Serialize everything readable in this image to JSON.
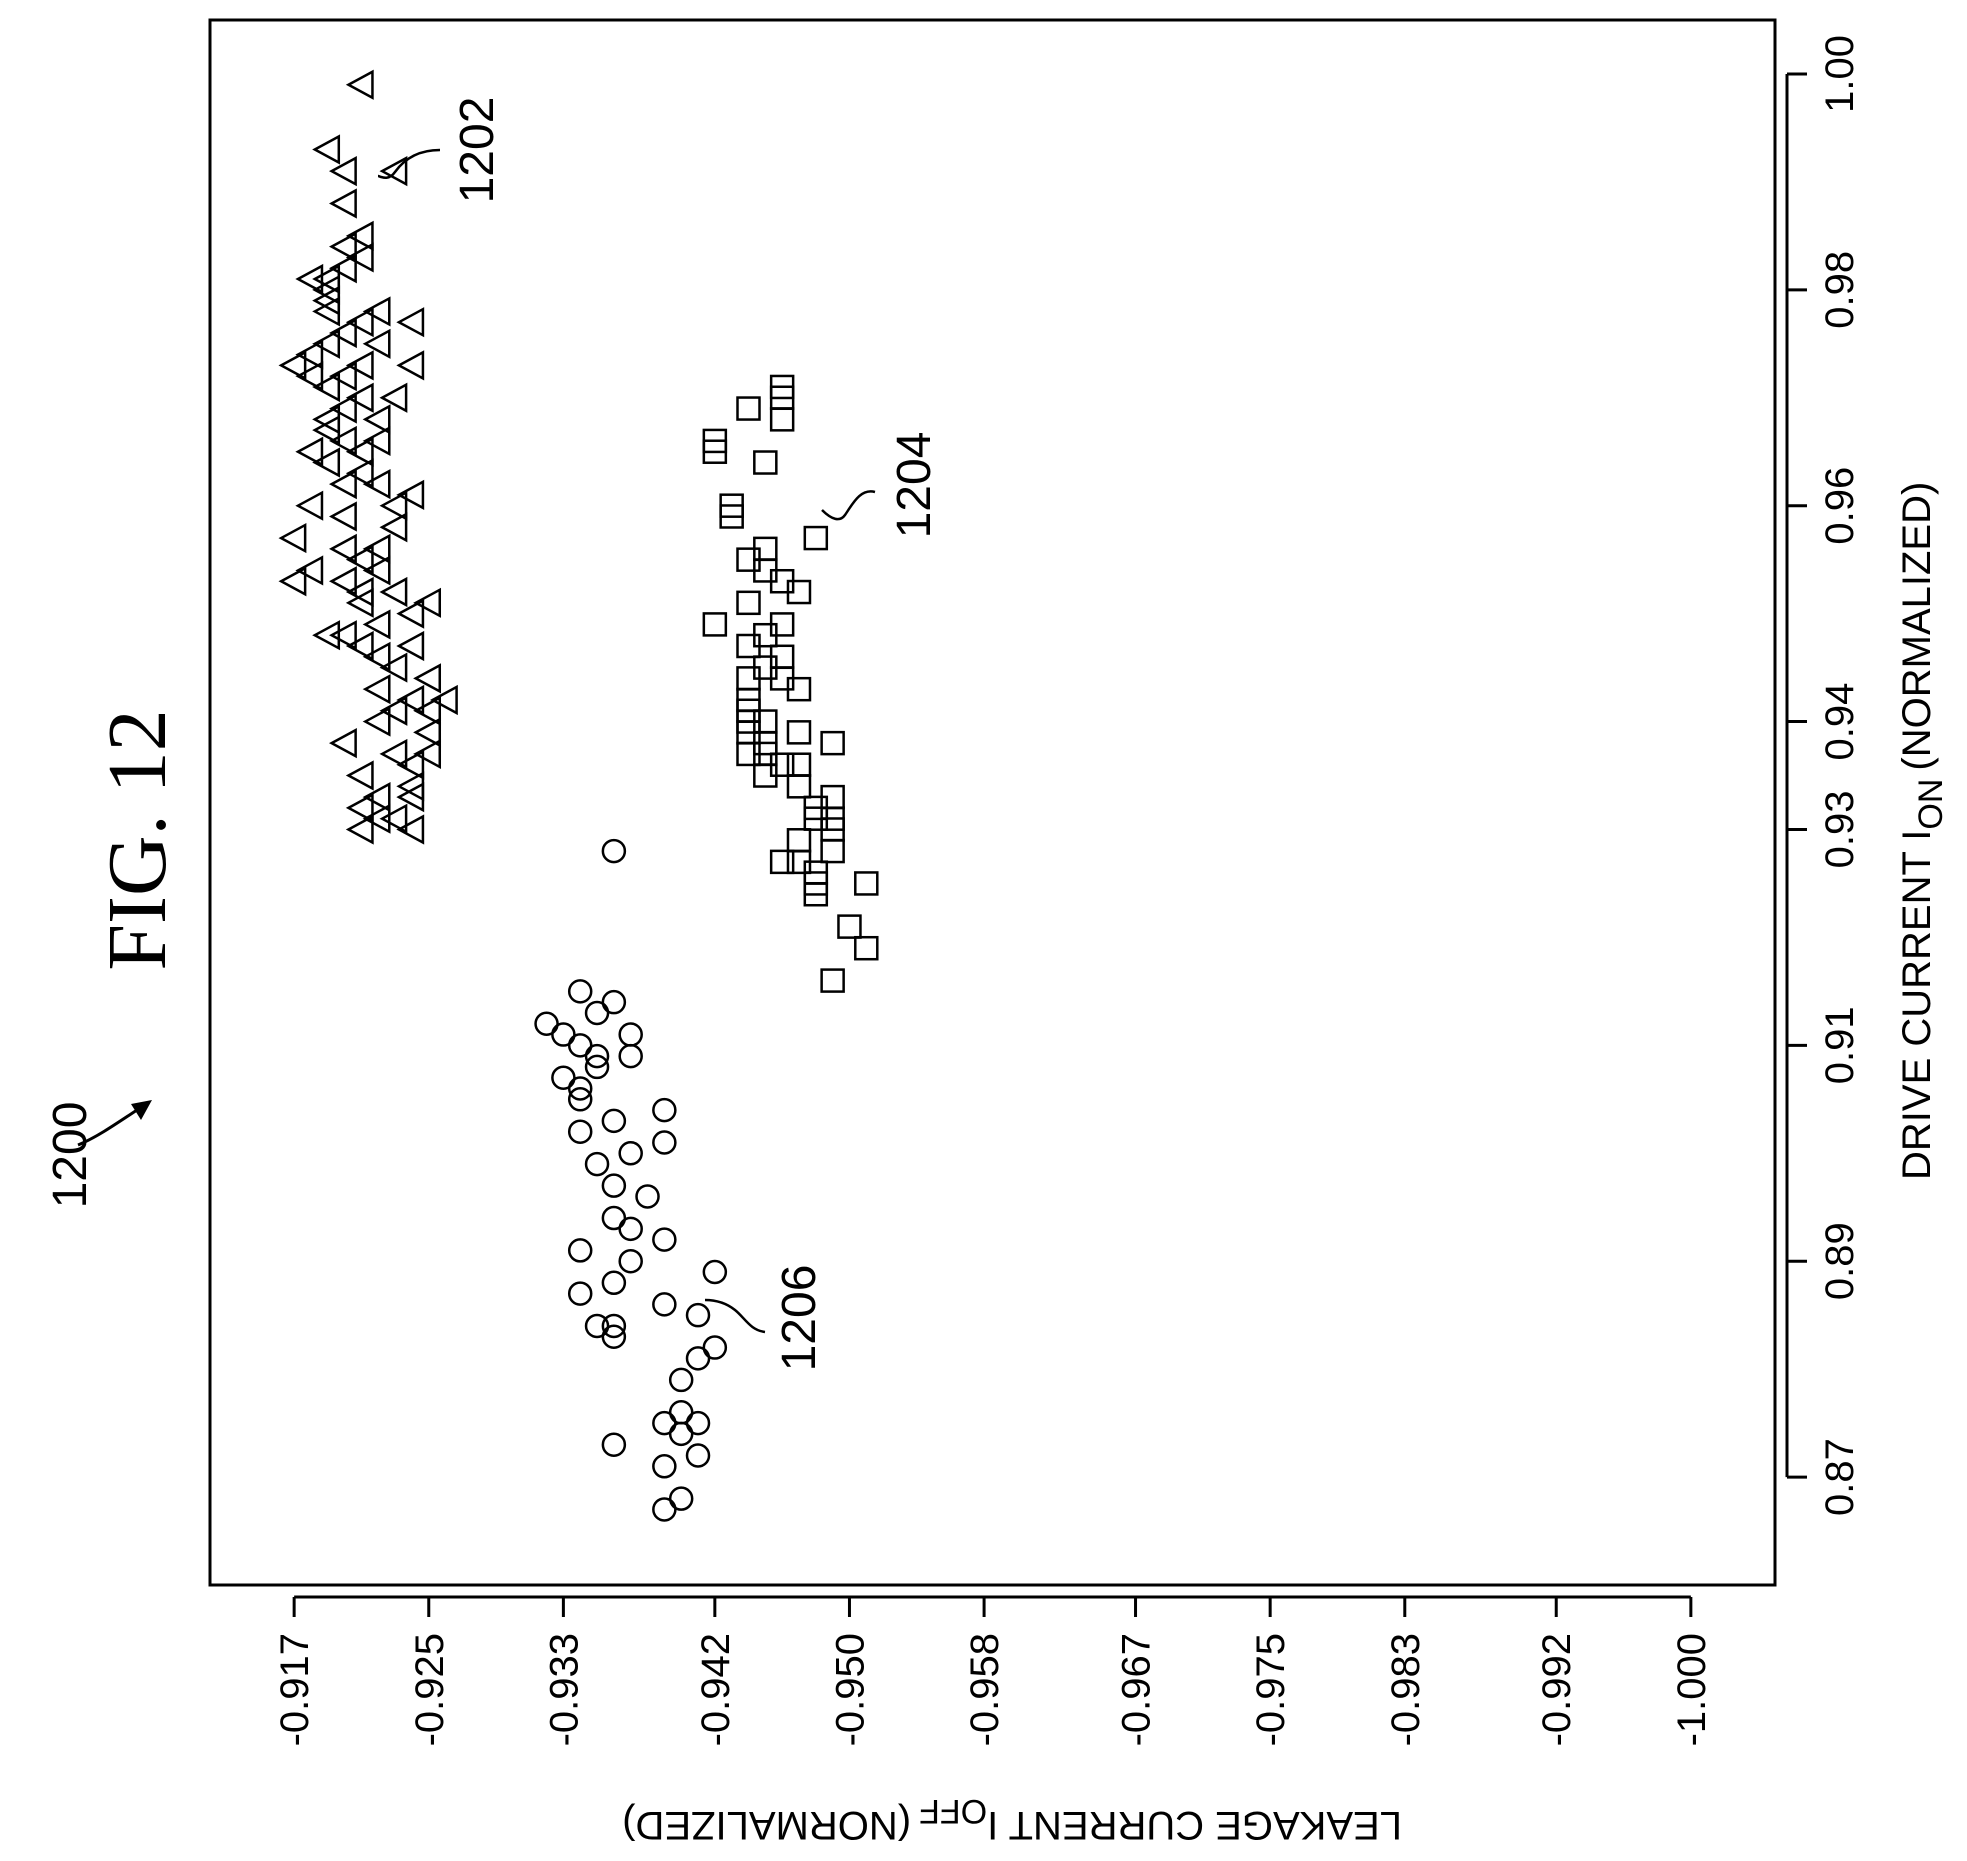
{
  "figure": {
    "title": "FIG. 12",
    "ref_number": "1200"
  },
  "chart_data": {
    "type": "scatter",
    "orientation": "rotated-90-degrees",
    "title": "",
    "xlabel": "DRIVE CURRENT I",
    "xlabel_subscript": "ON",
    "xlabel_suffix": "(NORMALIZED)",
    "ylabel": "LEAKAGE CURRENT I",
    "ylabel_subscript": "OFF",
    "ylabel_suffix": "(NORMALIZED)",
    "xlim": [
      0.86,
      1.005
    ],
    "ylim": [
      -0.912,
      -1.005
    ],
    "x_ticks": [
      0.87,
      0.89,
      0.91,
      0.93,
      0.94,
      0.96,
      0.98,
      1.0
    ],
    "x_tick_labels": [
      "0.87",
      "0.89",
      "0.91",
      "0.93",
      "0.94",
      "0.96",
      "0.98",
      "1.00"
    ],
    "y_ticks": [
      -0.917,
      -0.925,
      -0.933,
      -0.942,
      -0.95,
      -0.958,
      -0.967,
      -0.975,
      -0.983,
      -0.992,
      -1.0
    ],
    "y_tick_labels": [
      "-0.917",
      "-0.925",
      "-0.933",
      "-0.942",
      "-0.950",
      "-0.958",
      "-0.967",
      "-0.975",
      "-0.983",
      "-0.992",
      "-1.000"
    ],
    "grid": false,
    "series": [
      {
        "label": "1202",
        "marker": "triangle",
        "points": [
          [
            0.999,
            -0.921
          ],
          [
            0.993,
            -0.919
          ],
          [
            0.991,
            -0.92
          ],
          [
            0.991,
            -0.923
          ],
          [
            0.988,
            -0.92
          ],
          [
            0.985,
            -0.921
          ],
          [
            0.984,
            -0.92
          ],
          [
            0.983,
            -0.921
          ],
          [
            0.982,
            -0.92
          ],
          [
            0.981,
            -0.919
          ],
          [
            0.981,
            -0.918
          ],
          [
            0.98,
            -0.919
          ],
          [
            0.979,
            -0.919
          ],
          [
            0.978,
            -0.919
          ],
          [
            0.978,
            -0.922
          ],
          [
            0.977,
            -0.921
          ],
          [
            0.977,
            -0.924
          ],
          [
            0.976,
            -0.92
          ],
          [
            0.975,
            -0.919
          ],
          [
            0.975,
            -0.922
          ],
          [
            0.974,
            -0.918
          ],
          [
            0.973,
            -0.917
          ],
          [
            0.973,
            -0.921
          ],
          [
            0.973,
            -0.924
          ],
          [
            0.972,
            -0.92
          ],
          [
            0.972,
            -0.918
          ],
          [
            0.971,
            -0.919
          ],
          [
            0.97,
            -0.921
          ],
          [
            0.97,
            -0.923
          ],
          [
            0.969,
            -0.92
          ],
          [
            0.968,
            -0.919
          ],
          [
            0.968,
            -0.922
          ],
          [
            0.967,
            -0.919
          ],
          [
            0.966,
            -0.92
          ],
          [
            0.966,
            -0.922
          ],
          [
            0.965,
            -0.921
          ],
          [
            0.965,
            -0.918
          ],
          [
            0.964,
            -0.919
          ],
          [
            0.963,
            -0.921
          ],
          [
            0.962,
            -0.922
          ],
          [
            0.962,
            -0.92
          ],
          [
            0.961,
            -0.924
          ],
          [
            0.96,
            -0.923
          ],
          [
            0.96,
            -0.918
          ],
          [
            0.959,
            -0.92
          ],
          [
            0.958,
            -0.923
          ],
          [
            0.957,
            -0.917
          ],
          [
            0.956,
            -0.92
          ],
          [
            0.956,
            -0.922
          ],
          [
            0.955,
            -0.921
          ],
          [
            0.954,
            -0.918
          ],
          [
            0.954,
            -0.922
          ],
          [
            0.953,
            -0.92
          ],
          [
            0.953,
            -0.917
          ],
          [
            0.952,
            -0.921
          ],
          [
            0.952,
            -0.923
          ],
          [
            0.951,
            -0.921
          ],
          [
            0.951,
            -0.925
          ],
          [
            0.95,
            -0.924
          ],
          [
            0.949,
            -0.922
          ],
          [
            0.948,
            -0.919
          ],
          [
            0.948,
            -0.92
          ],
          [
            0.947,
            -0.921
          ],
          [
            0.947,
            -0.924
          ],
          [
            0.946,
            -0.922
          ],
          [
            0.945,
            -0.923
          ],
          [
            0.944,
            -0.925
          ],
          [
            0.943,
            -0.922
          ],
          [
            0.942,
            -0.926
          ],
          [
            0.942,
            -0.924
          ],
          [
            0.941,
            -0.923
          ],
          [
            0.941,
            -0.925
          ],
          [
            0.94,
            -0.922
          ],
          [
            0.939,
            -0.925
          ],
          [
            0.938,
            -0.92
          ],
          [
            0.937,
            -0.923
          ],
          [
            0.937,
            -0.925
          ],
          [
            0.936,
            -0.924
          ],
          [
            0.935,
            -0.921
          ],
          [
            0.934,
            -0.924
          ],
          [
            0.933,
            -0.922
          ],
          [
            0.933,
            -0.924
          ],
          [
            0.932,
            -0.921
          ],
          [
            0.931,
            -0.922
          ],
          [
            0.931,
            -0.923
          ],
          [
            0.93,
            -0.921
          ],
          [
            0.93,
            -0.924
          ]
        ]
      },
      {
        "label": "1204",
        "marker": "square",
        "points": [
          [
            0.971,
            -0.946
          ],
          [
            0.97,
            -0.946
          ],
          [
            0.969,
            -0.944
          ],
          [
            0.968,
            -0.946
          ],
          [
            0.966,
            -0.942
          ],
          [
            0.965,
            -0.942
          ],
          [
            0.964,
            -0.945
          ],
          [
            0.96,
            -0.943
          ],
          [
            0.959,
            -0.943
          ],
          [
            0.957,
            -0.948
          ],
          [
            0.956,
            -0.945
          ],
          [
            0.955,
            -0.944
          ],
          [
            0.954,
            -0.945
          ],
          [
            0.953,
            -0.946
          ],
          [
            0.952,
            -0.947
          ],
          [
            0.951,
            -0.944
          ],
          [
            0.949,
            -0.942
          ],
          [
            0.949,
            -0.946
          ],
          [
            0.948,
            -0.945
          ],
          [
            0.947,
            -0.944
          ],
          [
            0.946,
            -0.946
          ],
          [
            0.945,
            -0.945
          ],
          [
            0.944,
            -0.946
          ],
          [
            0.944,
            -0.944
          ],
          [
            0.943,
            -0.947
          ],
          [
            0.942,
            -0.944
          ],
          [
            0.941,
            -0.944
          ],
          [
            0.94,
            -0.944
          ],
          [
            0.94,
            -0.945
          ],
          [
            0.939,
            -0.947
          ],
          [
            0.939,
            -0.944
          ],
          [
            0.938,
            -0.945
          ],
          [
            0.938,
            -0.949
          ],
          [
            0.937,
            -0.945
          ],
          [
            0.937,
            -0.944
          ],
          [
            0.936,
            -0.947
          ],
          [
            0.936,
            -0.946
          ],
          [
            0.935,
            -0.945
          ],
          [
            0.934,
            -0.947
          ],
          [
            0.933,
            -0.949
          ],
          [
            0.932,
            -0.948
          ],
          [
            0.931,
            -0.949
          ],
          [
            0.931,
            -0.948
          ],
          [
            0.93,
            -0.949
          ],
          [
            0.929,
            -0.947
          ],
          [
            0.928,
            -0.949
          ],
          [
            0.927,
            -0.946
          ],
          [
            0.927,
            -0.947
          ],
          [
            0.926,
            -0.948
          ],
          [
            0.925,
            -0.948
          ],
          [
            0.925,
            -0.951
          ],
          [
            0.924,
            -0.948
          ],
          [
            0.921,
            -0.95
          ],
          [
            0.919,
            -0.951
          ],
          [
            0.916,
            -0.949
          ]
        ]
      },
      {
        "label": "1206",
        "marker": "circle",
        "points": [
          [
            0.928,
            -0.936
          ],
          [
            0.915,
            -0.934
          ],
          [
            0.914,
            -0.936
          ],
          [
            0.913,
            -0.935
          ],
          [
            0.912,
            -0.932
          ],
          [
            0.911,
            -0.933
          ],
          [
            0.911,
            -0.937
          ],
          [
            0.91,
            -0.934
          ],
          [
            0.909,
            -0.937
          ],
          [
            0.909,
            -0.935
          ],
          [
            0.908,
            -0.935
          ],
          [
            0.907,
            -0.933
          ],
          [
            0.906,
            -0.934
          ],
          [
            0.905,
            -0.934
          ],
          [
            0.904,
            -0.939
          ],
          [
            0.903,
            -0.936
          ],
          [
            0.902,
            -0.934
          ],
          [
            0.901,
            -0.939
          ],
          [
            0.9,
            -0.937
          ],
          [
            0.899,
            -0.935
          ],
          [
            0.897,
            -0.936
          ],
          [
            0.896,
            -0.938
          ],
          [
            0.894,
            -0.936
          ],
          [
            0.893,
            -0.937
          ],
          [
            0.892,
            -0.939
          ],
          [
            0.891,
            -0.934
          ],
          [
            0.89,
            -0.937
          ],
          [
            0.889,
            -0.942
          ],
          [
            0.888,
            -0.936
          ],
          [
            0.887,
            -0.934
          ],
          [
            0.886,
            -0.939
          ],
          [
            0.885,
            -0.941
          ],
          [
            0.884,
            -0.935
          ],
          [
            0.884,
            -0.936
          ],
          [
            0.883,
            -0.936
          ],
          [
            0.882,
            -0.942
          ],
          [
            0.881,
            -0.941
          ],
          [
            0.879,
            -0.94
          ],
          [
            0.876,
            -0.94
          ],
          [
            0.875,
            -0.941
          ],
          [
            0.875,
            -0.939
          ],
          [
            0.874,
            -0.94
          ],
          [
            0.873,
            -0.936
          ],
          [
            0.872,
            -0.941
          ],
          [
            0.871,
            -0.939
          ],
          [
            0.868,
            -0.94
          ],
          [
            0.867,
            -0.939
          ]
        ]
      }
    ]
  }
}
